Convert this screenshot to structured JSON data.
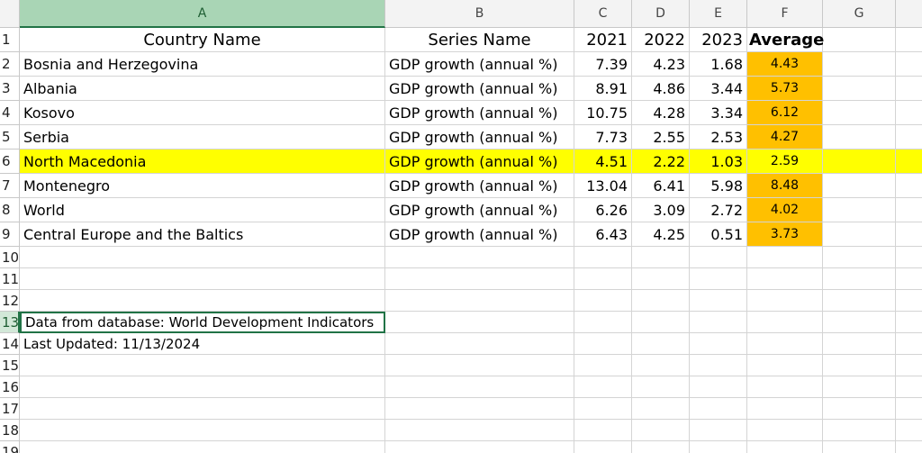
{
  "column_letters": [
    "A",
    "B",
    "C",
    "D",
    "E",
    "F",
    "G"
  ],
  "row_numbers": [
    1,
    2,
    3,
    4,
    5,
    6,
    7,
    8,
    9,
    10,
    11,
    12,
    13,
    14,
    15,
    16,
    17,
    18,
    19
  ],
  "table": {
    "header": [
      "Country Name",
      "Series Name",
      "2021",
      "2022",
      "2023",
      "Average"
    ],
    "rows": [
      [
        "Bosnia and Herzegovina",
        "GDP growth (annual %)",
        "7.39",
        "4.23",
        "1.68",
        "4.43"
      ],
      [
        "Albania",
        "GDP growth (annual %)",
        "8.91",
        "4.86",
        "3.44",
        "5.73"
      ],
      [
        "Kosovo",
        "GDP growth (annual %)",
        "10.75",
        "4.28",
        "3.34",
        "6.12"
      ],
      [
        "Serbia",
        "GDP growth (annual %)",
        "7.73",
        "2.55",
        "2.53",
        "4.27"
      ],
      [
        "North Macedonia",
        "GDP growth (annual %)",
        "4.51",
        "2.22",
        "1.03",
        "2.59"
      ],
      [
        "Montenegro",
        "GDP growth (annual %)",
        "13.04",
        "6.41",
        "5.98",
        "8.48"
      ],
      [
        "World",
        "GDP growth (annual %)",
        "6.26",
        "3.09",
        "2.72",
        "4.02"
      ],
      [
        "Central Europe and the Baltics",
        "GDP growth (annual %)",
        "6.43",
        "4.25",
        "0.51",
        "3.73"
      ]
    ]
  },
  "notes": [
    "Data from database: World Development Indicators",
    "Last Updated: 11/13/2024"
  ]
}
